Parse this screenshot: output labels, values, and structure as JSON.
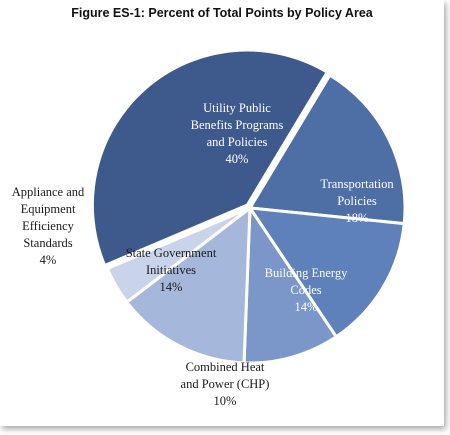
{
  "chart_data": {
    "type": "pie",
    "title": "Figure ES-1: Percent of Total Points by Policy Area",
    "slices": [
      {
        "label_lines": [
          "Utility Public",
          "Benefits Programs",
          "and Policies"
        ],
        "value_text": "40%",
        "value": 40,
        "color": "#3e5a8c",
        "label_color": "#ffffff"
      },
      {
        "label_lines": [
          "Transportation",
          "Policies"
        ],
        "value_text": "18%",
        "value": 18,
        "color": "#4e6ea6",
        "label_color": "#ffffff"
      },
      {
        "label_lines": [
          "Building Energy",
          "Codes"
        ],
        "value_text": "14%",
        "value": 14,
        "color": "#5e80bb",
        "label_color": "#ffffff"
      },
      {
        "label_lines": [
          "Combined Heat",
          "and Power (CHP)"
        ],
        "value_text": "10%",
        "value": 10,
        "color": "#7b96c8",
        "label_color": "#1a1a1a"
      },
      {
        "label_lines": [
          "State Government",
          "Initiatives"
        ],
        "value_text": "14%",
        "value": 14,
        "color": "#a5b7da",
        "label_color": "#1a1a1a"
      },
      {
        "label_lines": [
          "Appliance and",
          "Equipment",
          "Efficiency",
          "Standards"
        ],
        "value_text": "4%",
        "value": 4,
        "color": "#c9d4ea",
        "label_color": "#1a1a1a"
      }
    ]
  }
}
